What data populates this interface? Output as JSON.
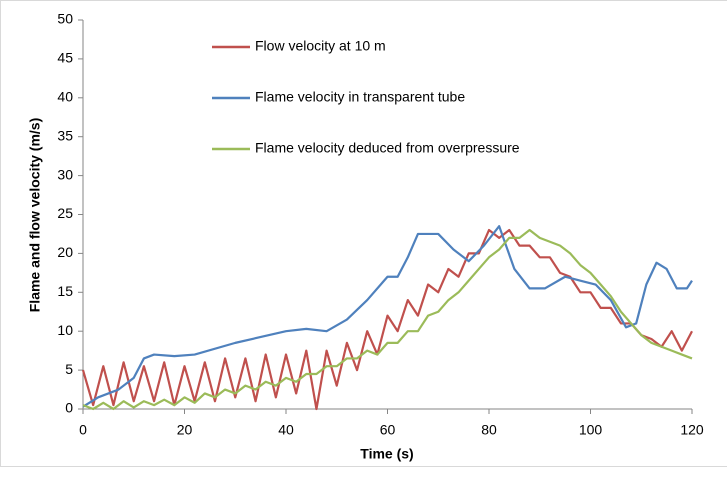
{
  "chart_data": {
    "type": "line",
    "xlabel": "Time (s)",
    "ylabel": "Flame and flow velocity (m/s)",
    "xlim": [
      0,
      120
    ],
    "xticks": [
      0,
      20,
      40,
      60,
      80,
      100,
      120
    ],
    "ylim": [
      0,
      50
    ],
    "yticks": [
      0,
      5,
      10,
      15,
      20,
      25,
      30,
      35,
      40,
      45,
      50
    ],
    "grid": false,
    "legend": "upper-left",
    "series": [
      {
        "name": "Flow velocity at 10 m",
        "color": "#c0504d",
        "x": [
          0,
          2,
          4,
          6,
          8,
          10,
          12,
          14,
          16,
          18,
          20,
          22,
          24,
          26,
          28,
          30,
          32,
          34,
          36,
          38,
          40,
          42,
          44,
          46,
          48,
          50,
          52,
          54,
          56,
          58,
          60,
          62,
          64,
          66,
          68,
          70,
          72,
          74,
          76,
          78,
          80,
          82,
          84,
          86,
          88,
          90,
          92,
          94,
          96,
          98,
          100,
          102,
          104,
          106,
          108,
          110,
          112,
          114,
          116,
          118,
          120
        ],
        "values": [
          5,
          0.5,
          5.5,
          0.5,
          6,
          1,
          5.5,
          1,
          6,
          0.5,
          5.5,
          1,
          6,
          1,
          6.5,
          1.5,
          6.5,
          1,
          7,
          1.5,
          7,
          2,
          7.5,
          0,
          7.5,
          3,
          8.5,
          5,
          10,
          7,
          12,
          10,
          14,
          12,
          16,
          15,
          18,
          17,
          20,
          20,
          23,
          22,
          23,
          21,
          21,
          19.5,
          19.5,
          17.5,
          17,
          15,
          15,
          13,
          13,
          11,
          11,
          9.5,
          9,
          8,
          10,
          7.5,
          10
        ]
      },
      {
        "name": "Flame velocity in transparent tube",
        "color": "#4f81bd",
        "x": [
          0,
          3,
          7,
          10,
          12,
          14,
          18,
          22,
          30,
          40,
          44,
          48,
          52,
          56,
          60,
          62,
          64,
          66,
          70,
          73,
          76,
          79,
          82,
          85,
          88,
          91,
          95,
          98,
          101,
          104,
          107,
          109,
          111,
          113,
          115,
          117,
          119,
          120
        ],
        "values": [
          0.3,
          1.5,
          2.5,
          4,
          6.5,
          7,
          6.8,
          7,
          8.5,
          10,
          10.3,
          10,
          11.5,
          14,
          17,
          17,
          19.5,
          22.5,
          22.5,
          20.5,
          19,
          21,
          23.5,
          18,
          15.5,
          15.5,
          17,
          16.5,
          16,
          14,
          10.5,
          11,
          16,
          18.8,
          18,
          15.5,
          15.5,
          16.5
        ]
      },
      {
        "name": "Flame velocity deduced from overpressure",
        "color": "#9bbb59",
        "x": [
          0,
          2,
          4,
          6,
          8,
          10,
          12,
          14,
          16,
          18,
          20,
          22,
          24,
          26,
          28,
          30,
          32,
          34,
          36,
          38,
          40,
          42,
          44,
          46,
          48,
          50,
          52,
          54,
          56,
          58,
          60,
          62,
          64,
          66,
          68,
          70,
          72,
          74,
          76,
          78,
          80,
          82,
          84,
          86,
          88,
          90,
          92,
          94,
          96,
          98,
          100,
          102,
          104,
          106,
          108,
          110,
          112,
          114,
          116,
          118,
          120
        ],
        "values": [
          0.5,
          0,
          0.8,
          0,
          1,
          0.2,
          1,
          0.5,
          1.2,
          0.5,
          1.5,
          0.8,
          2,
          1.5,
          2.5,
          2,
          3,
          2.5,
          3.5,
          3,
          4,
          3.5,
          4.5,
          4.5,
          5.5,
          5.5,
          6.5,
          6.5,
          7.5,
          7,
          8.5,
          8.5,
          10,
          10,
          12,
          12.5,
          14,
          15,
          16.5,
          18,
          19.5,
          20.5,
          22,
          22,
          23,
          22,
          21.5,
          21,
          20,
          18.5,
          17.5,
          16,
          14.5,
          12.5,
          11,
          9.5,
          8.5,
          8,
          7.5,
          7,
          6.5
        ]
      }
    ]
  }
}
